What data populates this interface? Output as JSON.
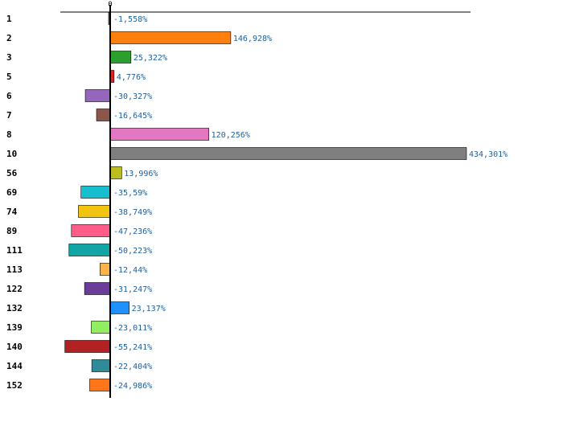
{
  "chart_data": {
    "type": "bar",
    "orientation": "horizontal",
    "title": "",
    "xlabel": "",
    "ylabel": "",
    "x_ticks": [
      "0"
    ],
    "xlim": [
      -60,
      440
    ],
    "grid": false,
    "legend": "none",
    "categories": [
      "1",
      "2",
      "3",
      "5",
      "6",
      "7",
      "8",
      "10",
      "56",
      "69",
      "74",
      "89",
      "111",
      "113",
      "122",
      "132",
      "139",
      "140",
      "144",
      "152"
    ],
    "values": [
      -1.558,
      146.928,
      25.322,
      4.776,
      -30.327,
      -16.645,
      120.256,
      434.301,
      13.996,
      -35.59,
      -38.749,
      -47.236,
      -50.223,
      -12.44,
      -31.247,
      23.137,
      -23.011,
      -55.241,
      -22.404,
      -24.986
    ],
    "value_labels": [
      "-1,558%",
      "146,928%",
      "25,322%",
      "4,776%",
      "-30,327%",
      "-16,645%",
      "120,256%",
      "434,301%",
      "13,996%",
      "-35,59%",
      "-38,749%",
      "-47,236%",
      "-50,223%",
      "-12,44%",
      "-31,247%",
      "23,137%",
      "-23,011%",
      "-55,241%",
      "-22,404%",
      "-24,986%"
    ],
    "colors": [
      "#1f77b4",
      "#ff7f0e",
      "#2ca02c",
      "#d62728",
      "#9467bd",
      "#8c564b",
      "#e377c2",
      "#7f7f7f",
      "#bcbd22",
      "#17becf",
      "#f1c40f",
      "#ff5c8a",
      "#12a5a5",
      "#ffb347",
      "#6a3d9a",
      "#1e90ff",
      "#90ee60",
      "#b22222",
      "#2e8b9a",
      "#ff7518"
    ]
  }
}
